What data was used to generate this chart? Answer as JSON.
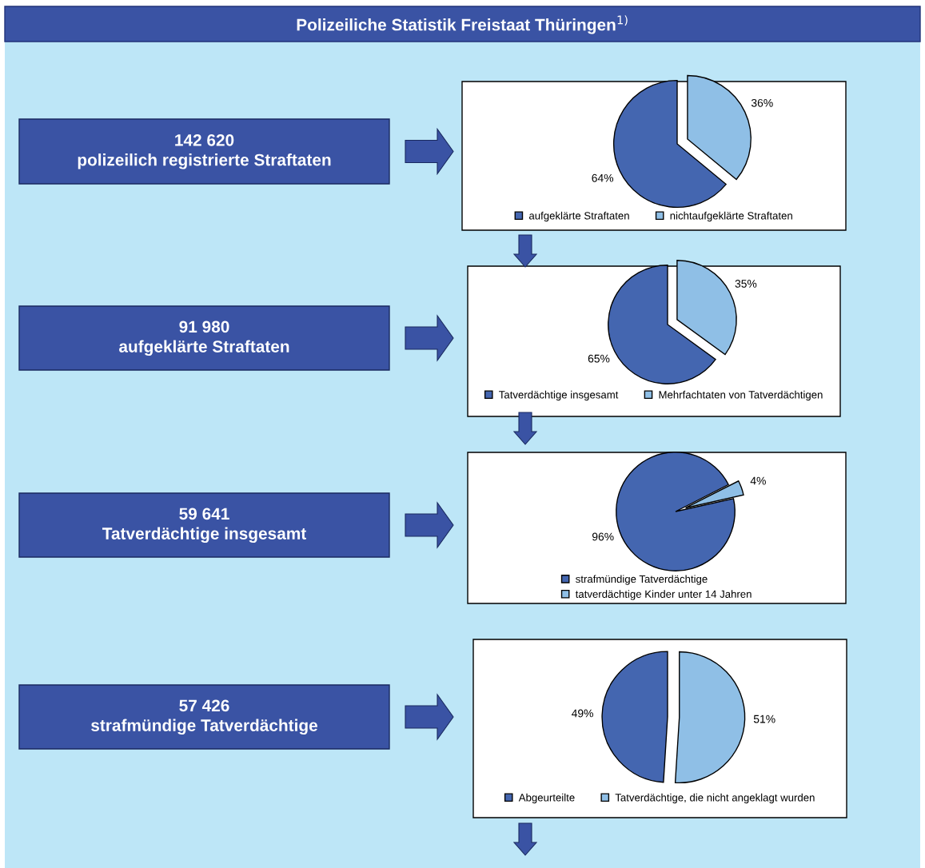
{
  "chart_data": [
    {
      "type": "other",
      "title": "Polizeiliche Statistik Freistaat Thüringen$^{1)}$"
    },
    {
      "type": "pie",
      "annotations": [
        "142 620\npolizeilich registrierte Straftaten"
      ],
      "categories": [
        "aufgeklärte Straftaten",
        "nichtaufgeklärte Straftaten"
      ],
      "values": [
        64,
        36
      ],
      "value_labels": [
        "64%",
        "36%"
      ],
      "colors": [
        "#4466b0",
        "#8fbfe6"
      ],
      "legend": "bottom"
    },
    {
      "type": "pie",
      "annotations": [
        "91 980\naufgeklärte Straftaten"
      ],
      "categories": [
        "Tatverdächtige insgesamt",
        "Mehrfachtaten von Tatverdächtigen"
      ],
      "values": [
        65,
        35
      ],
      "value_labels": [
        "65%",
        "35%"
      ],
      "colors": [
        "#4466b0",
        "#8fbfe6"
      ],
      "legend": "bottom"
    },
    {
      "type": "pie",
      "annotations": [
        "59 641\nTatverdächtige insgesamt"
      ],
      "categories": [
        "strafmündige Tatverdächtige",
        "tatverdächtige Kinder unter 14 Jahren"
      ],
      "values": [
        96,
        4
      ],
      "value_labels": [
        "96%",
        "4%"
      ],
      "colors": [
        "#4466b0",
        "#8fbfe6"
      ],
      "legend": "bottom"
    },
    {
      "type": "pie",
      "annotations": [
        "57 426\nstrafmündige Tatverdächtige"
      ],
      "categories": [
        "Abgeurteilte",
        "Tatverdächtige, die nicht angeklagt wurden"
      ],
      "values": [
        49,
        51
      ],
      "value_labels": [
        "49%",
        "51%"
      ],
      "colors": [
        "#4466b0",
        "#8fbfe6"
      ],
      "legend": "bottom"
    }
  ]
}
